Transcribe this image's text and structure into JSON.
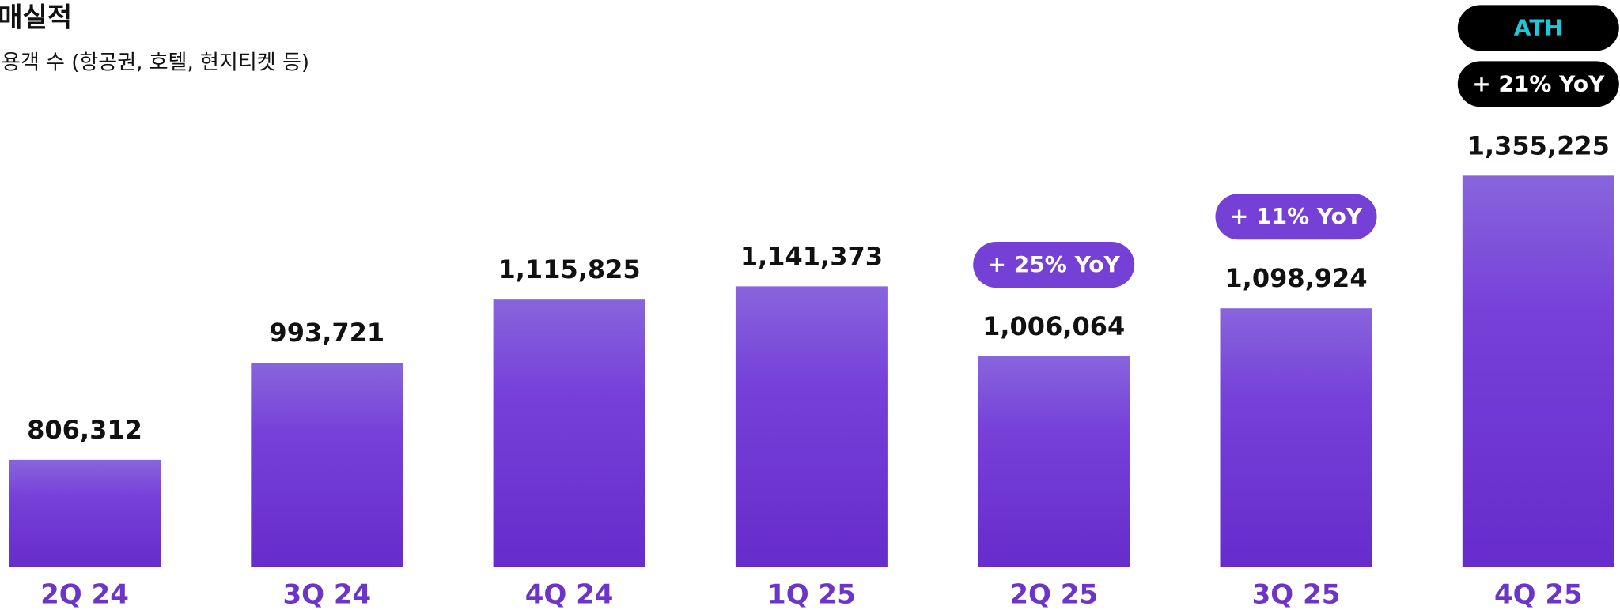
{
  "chart_data": {
    "type": "bar",
    "title": "판매실적",
    "subtitle": "이용객 수 (항공권, 호텔, 현지티켓 등)",
    "categories": [
      "2Q 24",
      "3Q 24",
      "4Q 24",
      "1Q 25",
      "2Q 25",
      "3Q 25",
      "4Q 25"
    ],
    "values": [
      806312,
      993721,
      1115825,
      1141373,
      1006064,
      1098924,
      1355225
    ],
    "value_labels": [
      "806,312",
      "993,721",
      "1,115,825",
      "1,141,373",
      "1,006,064",
      "1,098,924",
      "1,355,225"
    ],
    "color": "#7440d6",
    "ylim": [
      600000,
      1400000
    ],
    "annotations": [
      {
        "category": "2Q 25",
        "labels": [
          "+ 25% YoY"
        ],
        "color": "#7440d6",
        "text_colors": [
          "#ffffff"
        ]
      },
      {
        "category": "3Q 25",
        "labels": [
          "+ 11% YoY"
        ],
        "color": "#7440d6",
        "text_colors": [
          "#ffffff"
        ]
      },
      {
        "category": "4Q 25",
        "labels": [
          "+ 21% YoY",
          "ATH"
        ],
        "color": "#000000",
        "text_colors": [
          "#ffffff",
          "#1ec8d8"
        ]
      }
    ]
  }
}
